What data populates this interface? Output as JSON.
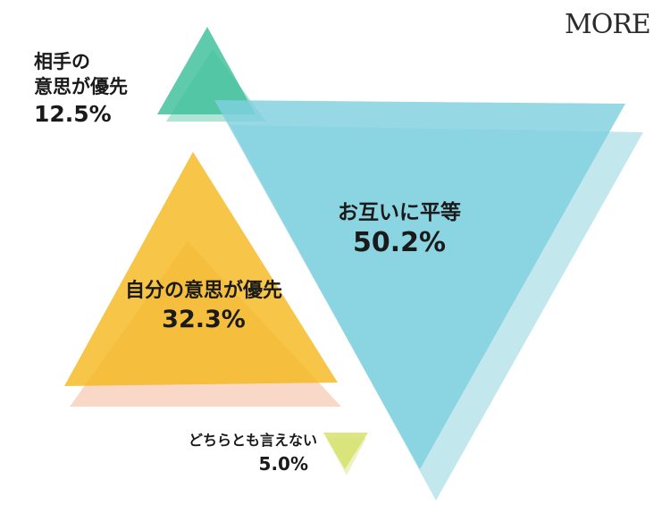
{
  "brand": {
    "logo_text": "MORE"
  },
  "chart_data": {
    "type": "pie",
    "title": "",
    "categories": [
      "相手の意思が優先",
      "お互いに平等",
      "自分の意思が優先",
      "どちらとも言えない"
    ],
    "values": [
      12.5,
      50.2,
      32.3,
      5.0
    ],
    "unit": "%",
    "value_labels": [
      "12.5%",
      "50.2%",
      "32.3%",
      "5.0%"
    ],
    "series": [
      {
        "label": "相手の意思が優先",
        "label_lines": [
          "相手の",
          "意思が優先"
        ],
        "value": 12.5,
        "value_text": "12.5%",
        "color": "#3dbf9a",
        "shadow_color": "#8fd9c4",
        "shape": "triangle-up"
      },
      {
        "label": "お互いに平等",
        "label_lines": [
          "お互いに平等"
        ],
        "value": 50.2,
        "value_text": "50.2%",
        "color": "#7fd0de",
        "shadow_color": "#a8dde6",
        "shape": "triangle-down"
      },
      {
        "label": "自分の意思が優先",
        "label_lines": [
          "自分の意思が優先"
        ],
        "value": 32.3,
        "value_text": "32.3%",
        "color": "#f5b81f",
        "shadow_color": "#f7c8b0",
        "shape": "triangle-up"
      },
      {
        "label": "どちらとも言えない",
        "label_lines": [
          "どちらとも言えない"
        ],
        "value": 5.0,
        "value_text": "5.0%",
        "color": "#d4e06a",
        "shadow_color": "#e6ecaa",
        "shape": "triangle-down"
      }
    ]
  }
}
